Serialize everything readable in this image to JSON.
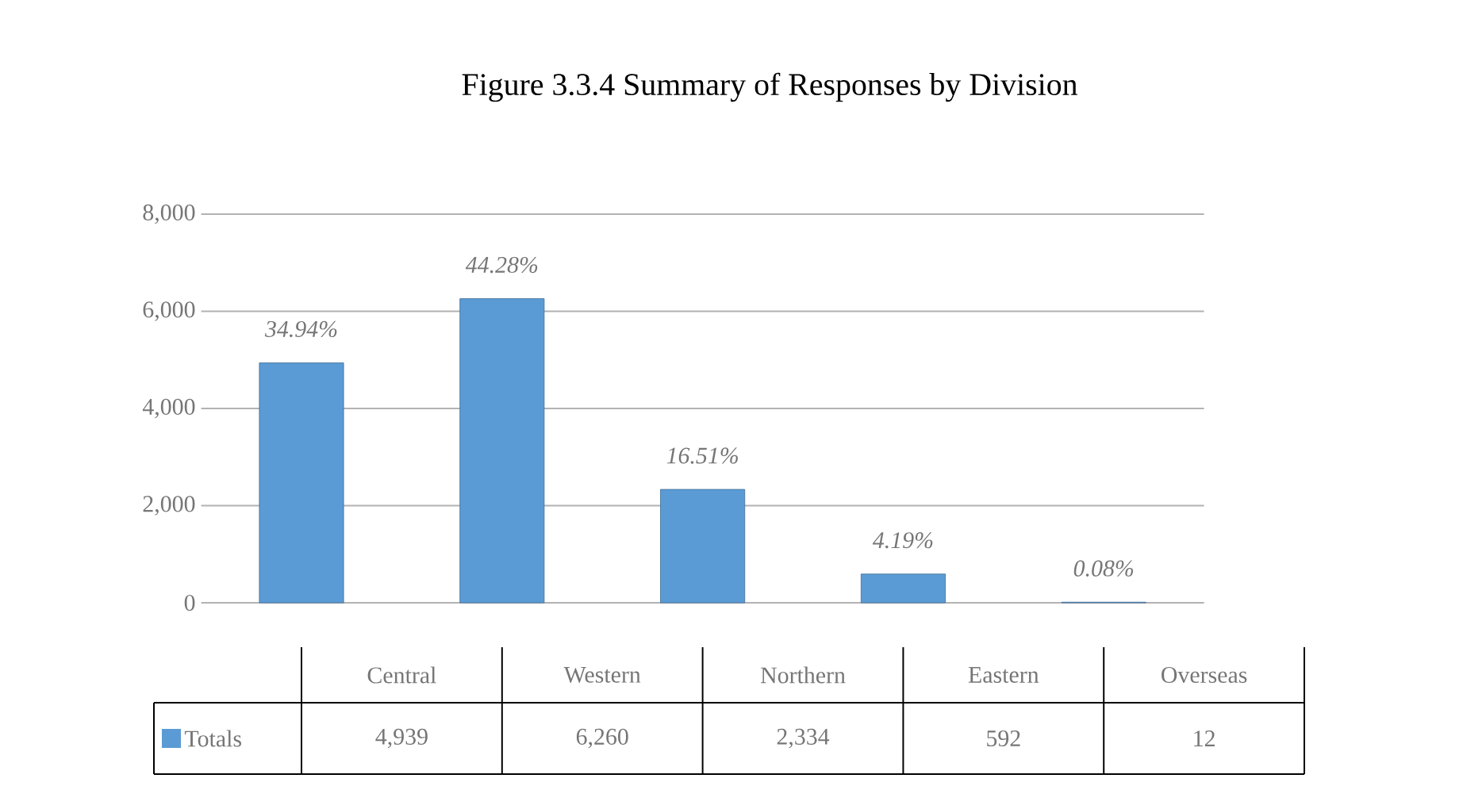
{
  "chart_data": {
    "type": "bar",
    "title": "Figure 3.3.4 Summary of Responses by Division",
    "categories": [
      "Central",
      "Western",
      "Northern",
      "Eastern",
      "Overseas"
    ],
    "series": [
      {
        "name": "Totals",
        "color": "#5b9bd5",
        "values": [
          4939,
          6260,
          2334,
          592,
          12
        ],
        "value_labels": [
          "4,939",
          "6,260",
          "2,334",
          "592",
          "12"
        ]
      }
    ],
    "annotations": [
      "34.94%",
      "44.28%",
      "16.51%",
      "4.19%",
      "0.08%"
    ],
    "ylim": [
      0,
      8000
    ],
    "yticks": [
      0,
      {
        "value": 2000,
        "label": "2,000"
      },
      {
        "value": 4000,
        "label": "4,000"
      },
      {
        "value": 6000,
        "label": "6,000"
      },
      {
        "value": 8000,
        "label": "8,000"
      }
    ],
    "grid": "y",
    "legend": "bottom left"
  }
}
